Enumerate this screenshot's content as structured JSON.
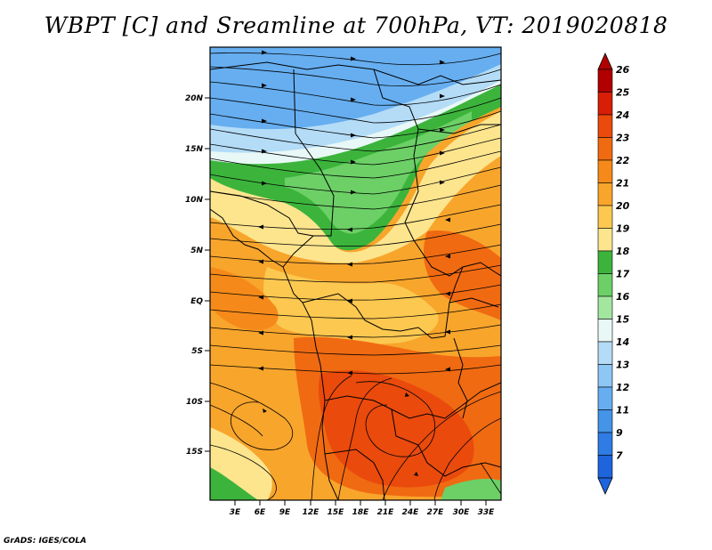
{
  "title": "WBPT [C] and Sreamline at 700hPa, VT: 2019020818",
  "footer": "GrADS: IGES/COLA",
  "map": {
    "lat_ticks": [
      "20N",
      "15N",
      "10N",
      "5N",
      "EQ",
      "5S",
      "10S",
      "15S"
    ],
    "lon_ticks": [
      "3E",
      "6E",
      "9E",
      "12E",
      "15E",
      "18E",
      "21E",
      "24E",
      "27E",
      "30E",
      "33E"
    ]
  },
  "colorbar": {
    "labels": [
      "26",
      "25",
      "24",
      "23",
      "22",
      "21",
      "20",
      "19",
      "18",
      "17",
      "16",
      "15",
      "14",
      "13",
      "12",
      "11",
      "9",
      "7"
    ],
    "colors": [
      "#b00000",
      "#d81e06",
      "#ea4a0c",
      "#f06a12",
      "#f58a1a",
      "#f8a52c",
      "#fcc850",
      "#fde58e",
      "#3cb43c",
      "#6cd066",
      "#a3e6a0",
      "#e8f8f6",
      "#b4dcf7",
      "#8ec6f4",
      "#66aef0",
      "#4494e8",
      "#2e7ce4",
      "#1e64dc"
    ],
    "top_color": "#b00000",
    "bottom_color": "#1e64dc"
  }
}
